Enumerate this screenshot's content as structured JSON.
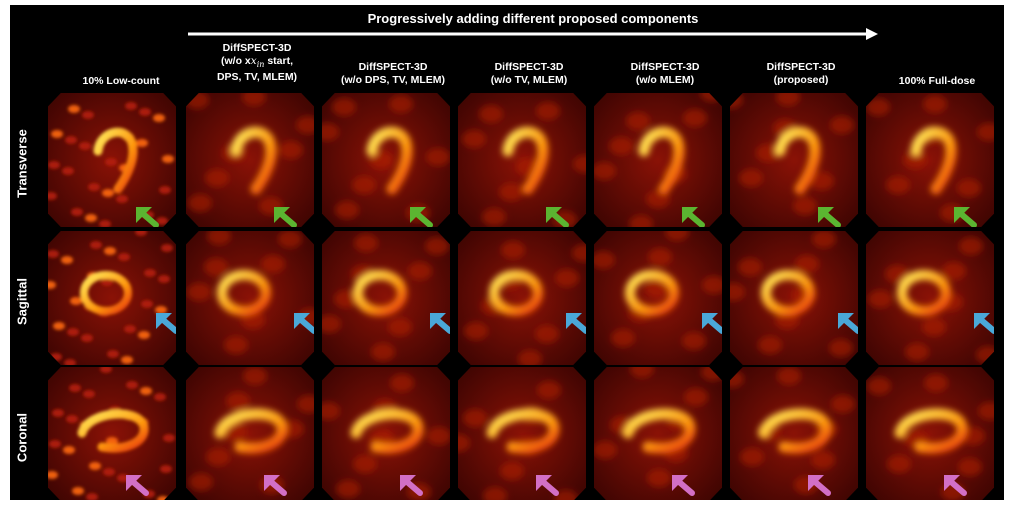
{
  "banner": {
    "title": "Progressively adding different proposed components"
  },
  "columns": [
    {
      "id": "low",
      "lines": [
        "10% Low-count"
      ]
    },
    {
      "id": "nostart",
      "lines": [
        "DiffSPECT-3D",
        "(w/o x",
        " start,",
        "DPS, TV, MLEM)"
      ],
      "math": "x_in"
    },
    {
      "id": "nodps",
      "lines": [
        "DiffSPECT-3D",
        "(w/o DPS, TV, MLEM)"
      ]
    },
    {
      "id": "notv",
      "lines": [
        "DiffSPECT-3D",
        "(w/o TV, MLEM)"
      ]
    },
    {
      "id": "nomlem",
      "lines": [
        "DiffSPECT-3D",
        "(w/o MLEM)"
      ]
    },
    {
      "id": "proposed",
      "lines": [
        "DiffSPECT-3D",
        "(proposed)"
      ]
    },
    {
      "id": "full",
      "lines": [
        "100% Full-dose"
      ]
    }
  ],
  "rows": [
    {
      "id": "transverse",
      "label": "Transverse",
      "arrow_color": "#5bb531"
    },
    {
      "id": "sagittal",
      "label": "Sagittal",
      "arrow_color": "#4aa8d8"
    },
    {
      "id": "coronal",
      "label": "Coronal",
      "arrow_color": "#d26fc6"
    }
  ],
  "colors": {
    "background": "#000000",
    "text": "#ffffff",
    "colormap": "hot"
  }
}
